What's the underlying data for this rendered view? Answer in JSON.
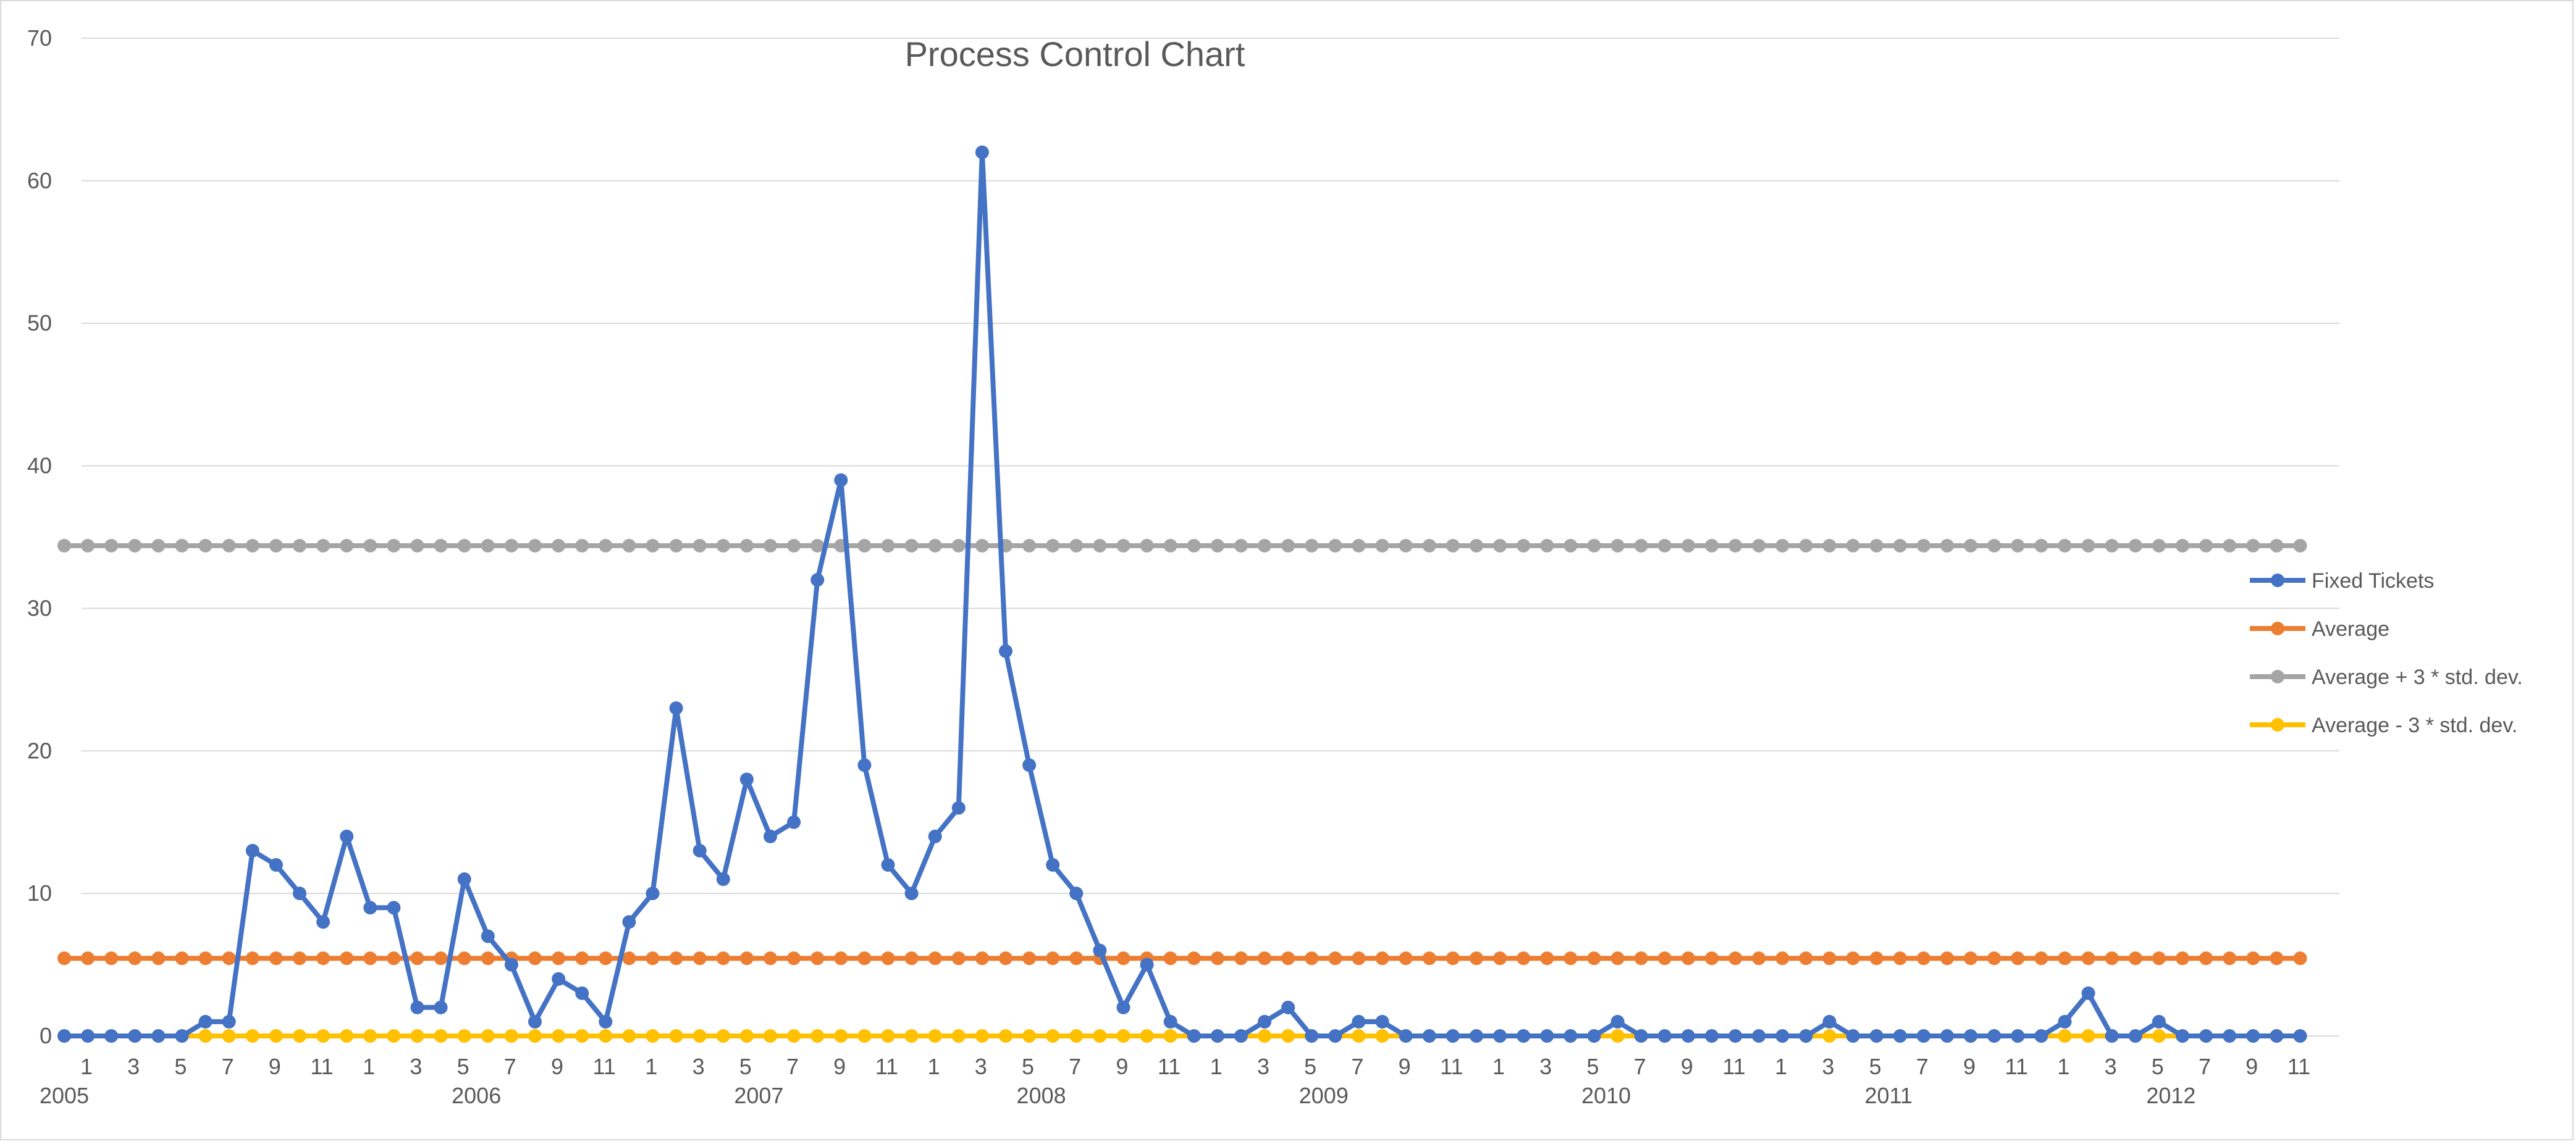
{
  "chart_data": {
    "type": "line",
    "title": "Process Control Chart",
    "xlabel": "",
    "ylabel": "",
    "ylim": [
      0,
      70
    ],
    "y_ticks": [
      "0",
      "10",
      "20",
      "30",
      "40",
      "50",
      "60",
      "70"
    ],
    "grid": true,
    "legend_position": "right",
    "x_month_labels": [
      "1",
      "3",
      "5",
      "7",
      "9",
      "11"
    ],
    "x_year_labels": [
      "2005",
      "2006",
      "2007",
      "2008",
      "2009",
      "2010",
      "2011",
      "2012"
    ],
    "series": [
      {
        "name": "Fixed Tickets",
        "color": "#4472C4",
        "values": [
          0,
          0,
          0,
          0,
          0,
          0,
          1,
          1,
          13,
          12,
          10,
          8,
          14,
          9,
          9,
          2,
          2,
          11,
          7,
          5,
          1,
          4,
          3,
          1,
          8,
          10,
          23,
          13,
          11,
          18,
          14,
          15,
          32,
          39,
          19,
          12,
          10,
          14,
          16,
          62,
          27,
          19,
          12,
          10,
          6,
          2,
          5,
          1,
          0,
          0,
          0,
          1,
          2,
          0,
          0,
          1,
          1,
          0,
          0,
          0,
          0,
          0,
          0,
          0,
          0,
          0,
          1,
          0,
          0,
          0,
          0,
          0,
          0,
          0,
          0,
          1,
          0,
          0,
          0,
          0,
          0,
          0,
          0,
          0,
          0,
          1,
          3,
          0,
          0,
          1,
          0,
          0,
          0,
          0,
          0,
          0
        ]
      },
      {
        "name": "Average",
        "color": "#ED7D31",
        "value": 5.45
      },
      {
        "name": "Average + 3 * std. dev.",
        "color": "#A5A5A5",
        "value": 34.4
      },
      {
        "name": "Average - 3 * std. dev.",
        "color": "#FFC000",
        "value": 0
      }
    ]
  }
}
